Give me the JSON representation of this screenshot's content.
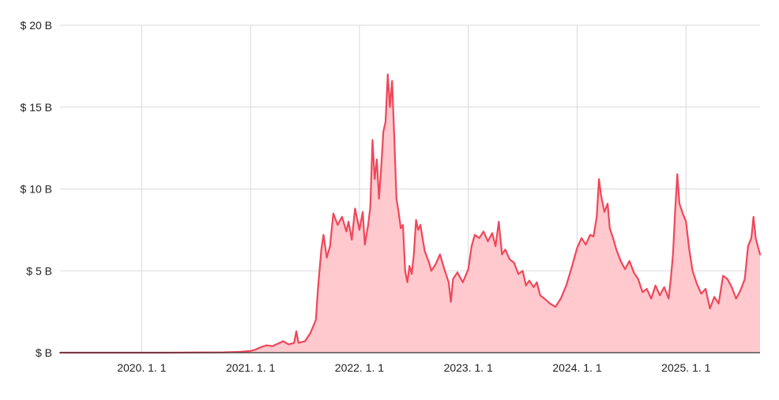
{
  "chart_data": {
    "type": "area",
    "title": "",
    "xlabel": "",
    "ylabel": "",
    "y_tick_labels": [
      "$  B",
      "$ 5 B",
      "$ 10 B",
      "$ 15 B",
      "$ 20 B"
    ],
    "y_tick_values": [
      0,
      5,
      10,
      15,
      20
    ],
    "x_tick_labels": [
      "2020. 1. 1",
      "2021. 1. 1",
      "2022. 1. 1",
      "2023. 1. 1",
      "2024. 1. 1",
      "2025. 1. 1"
    ],
    "x_tick_values": [
      2020.0,
      2021.0,
      2022.0,
      2023.0,
      2024.0,
      2025.0
    ],
    "xlim": [
      2019.25,
      2025.68
    ],
    "ylim": [
      0,
      20
    ],
    "grid": true,
    "colors": {
      "line": "#f0475a",
      "fill": "#ffc9ce",
      "grid": "#d9d9d9",
      "axis": "#333333"
    },
    "series": [
      {
        "values": [
          [
            2019.25,
            0.0
          ],
          [
            2019.75,
            0.0
          ],
          [
            2020.25,
            0.0
          ],
          [
            2020.75,
            0.02
          ],
          [
            2020.9,
            0.05
          ],
          [
            2021.0,
            0.1
          ],
          [
            2021.05,
            0.2
          ],
          [
            2021.1,
            0.35
          ],
          [
            2021.15,
            0.45
          ],
          [
            2021.2,
            0.4
          ],
          [
            2021.25,
            0.55
          ],
          [
            2021.3,
            0.7
          ],
          [
            2021.35,
            0.5
          ],
          [
            2021.4,
            0.6
          ],
          [
            2021.42,
            1.3
          ],
          [
            2021.44,
            0.6
          ],
          [
            2021.5,
            0.7
          ],
          [
            2021.55,
            1.2
          ],
          [
            2021.6,
            2.0
          ],
          [
            2021.62,
            4.0
          ],
          [
            2021.65,
            6.3
          ],
          [
            2021.67,
            7.2
          ],
          [
            2021.7,
            5.8
          ],
          [
            2021.73,
            6.5
          ],
          [
            2021.76,
            8.5
          ],
          [
            2021.8,
            7.8
          ],
          [
            2021.84,
            8.3
          ],
          [
            2021.88,
            7.4
          ],
          [
            2021.9,
            8.0
          ],
          [
            2021.93,
            6.9
          ],
          [
            2021.96,
            8.8
          ],
          [
            2022.0,
            7.5
          ],
          [
            2022.03,
            8.6
          ],
          [
            2022.05,
            6.6
          ],
          [
            2022.08,
            7.8
          ],
          [
            2022.1,
            8.9
          ],
          [
            2022.12,
            13.0
          ],
          [
            2022.14,
            10.6
          ],
          [
            2022.16,
            11.8
          ],
          [
            2022.18,
            9.4
          ],
          [
            2022.2,
            11.3
          ],
          [
            2022.22,
            13.5
          ],
          [
            2022.24,
            14.1
          ],
          [
            2022.26,
            17.0
          ],
          [
            2022.28,
            15.0
          ],
          [
            2022.3,
            16.6
          ],
          [
            2022.32,
            13.2
          ],
          [
            2022.34,
            9.4
          ],
          [
            2022.36,
            8.6
          ],
          [
            2022.38,
            7.6
          ],
          [
            2022.4,
            7.8
          ],
          [
            2022.42,
            5.0
          ],
          [
            2022.44,
            4.3
          ],
          [
            2022.46,
            5.3
          ],
          [
            2022.48,
            4.8
          ],
          [
            2022.5,
            6.0
          ],
          [
            2022.52,
            8.1
          ],
          [
            2022.54,
            7.5
          ],
          [
            2022.56,
            7.8
          ],
          [
            2022.6,
            6.2
          ],
          [
            2022.64,
            5.5
          ],
          [
            2022.66,
            5.0
          ],
          [
            2022.7,
            5.4
          ],
          [
            2022.74,
            6.0
          ],
          [
            2022.78,
            5.1
          ],
          [
            2022.82,
            4.3
          ],
          [
            2022.84,
            3.1
          ],
          [
            2022.86,
            4.5
          ],
          [
            2022.9,
            4.9
          ],
          [
            2022.95,
            4.3
          ],
          [
            2023.0,
            5.1
          ],
          [
            2023.03,
            6.5
          ],
          [
            2023.06,
            7.2
          ],
          [
            2023.1,
            7.0
          ],
          [
            2023.14,
            7.4
          ],
          [
            2023.18,
            6.8
          ],
          [
            2023.22,
            7.3
          ],
          [
            2023.25,
            6.5
          ],
          [
            2023.28,
            8.0
          ],
          [
            2023.31,
            6.0
          ],
          [
            2023.34,
            6.3
          ],
          [
            2023.38,
            5.7
          ],
          [
            2023.42,
            5.5
          ],
          [
            2023.46,
            4.8
          ],
          [
            2023.5,
            5.0
          ],
          [
            2023.53,
            4.1
          ],
          [
            2023.56,
            4.4
          ],
          [
            2023.6,
            4.0
          ],
          [
            2023.63,
            4.3
          ],
          [
            2023.66,
            3.5
          ],
          [
            2023.7,
            3.3
          ],
          [
            2023.75,
            3.0
          ],
          [
            2023.8,
            2.8
          ],
          [
            2023.85,
            3.3
          ],
          [
            2023.9,
            4.1
          ],
          [
            2023.95,
            5.2
          ],
          [
            2024.0,
            6.4
          ],
          [
            2024.04,
            7.0
          ],
          [
            2024.08,
            6.6
          ],
          [
            2024.12,
            7.2
          ],
          [
            2024.15,
            7.1
          ],
          [
            2024.18,
            8.3
          ],
          [
            2024.2,
            10.6
          ],
          [
            2024.22,
            9.6
          ],
          [
            2024.25,
            8.6
          ],
          [
            2024.28,
            9.1
          ],
          [
            2024.3,
            7.6
          ],
          [
            2024.33,
            7.0
          ],
          [
            2024.36,
            6.3
          ],
          [
            2024.4,
            5.6
          ],
          [
            2024.44,
            5.1
          ],
          [
            2024.48,
            5.6
          ],
          [
            2024.52,
            4.9
          ],
          [
            2024.56,
            4.5
          ],
          [
            2024.6,
            3.7
          ],
          [
            2024.64,
            3.9
          ],
          [
            2024.68,
            3.3
          ],
          [
            2024.72,
            4.1
          ],
          [
            2024.76,
            3.5
          ],
          [
            2024.8,
            4.0
          ],
          [
            2024.84,
            3.3
          ],
          [
            2024.86,
            4.5
          ],
          [
            2024.88,
            6.0
          ],
          [
            2024.9,
            8.6
          ],
          [
            2024.92,
            10.9
          ],
          [
            2024.94,
            9.1
          ],
          [
            2024.97,
            8.5
          ],
          [
            2025.0,
            8.0
          ],
          [
            2025.03,
            6.3
          ],
          [
            2025.06,
            5.0
          ],
          [
            2025.1,
            4.2
          ],
          [
            2025.14,
            3.6
          ],
          [
            2025.18,
            3.9
          ],
          [
            2025.22,
            2.7
          ],
          [
            2025.26,
            3.4
          ],
          [
            2025.3,
            3.0
          ],
          [
            2025.34,
            4.7
          ],
          [
            2025.38,
            4.5
          ],
          [
            2025.42,
            4.0
          ],
          [
            2025.46,
            3.3
          ],
          [
            2025.5,
            3.8
          ],
          [
            2025.54,
            4.5
          ],
          [
            2025.57,
            6.5
          ],
          [
            2025.6,
            7.0
          ],
          [
            2025.62,
            8.3
          ],
          [
            2025.64,
            7.0
          ],
          [
            2025.66,
            6.5
          ],
          [
            2025.68,
            6.0
          ]
        ]
      }
    ]
  }
}
